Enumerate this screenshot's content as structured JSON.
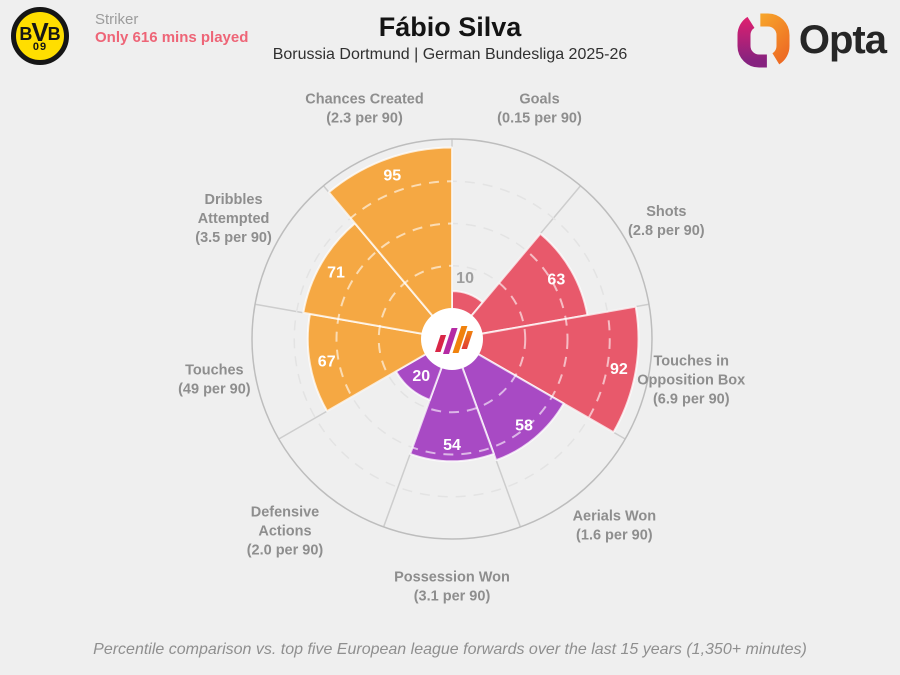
{
  "header": {
    "club_badge": {
      "b1": "B",
      "v": "V",
      "b2": "B",
      "number": "09"
    },
    "position": "Striker",
    "warning": "Only 616 mins played",
    "title": "Fábio Silva",
    "subtitle": "Borussia Dortmund | German Bundesliga 2025-26",
    "brand": "Opta"
  },
  "footer": {
    "note": "Percentile comparison vs. top five European league forwards over the last 15 years (1,350+ minutes)"
  },
  "colors": {
    "background": "#EFEFEF",
    "red": "#E8596B",
    "orange": "#F5A843",
    "purple": "#A84AC4",
    "warning_text": "#EE6577",
    "label_gray": "#8E8E8E",
    "outer_ring": "#BDBDBD",
    "spoke_gray": "#CDCDCD",
    "faint_grid": "#E3E3E3",
    "outside_value_gray": "#9E9E9E"
  },
  "chart_data": {
    "type": "pizza-radar",
    "title": "Fábio Silva",
    "unit": "percentile",
    "scale": [
      0,
      100
    ],
    "grid_rings_percent": [
      25,
      50,
      75
    ],
    "legend_position": "none",
    "categories": [
      {
        "name_lines": [
          "Goals"
        ],
        "per90": "(0.15 per 90)",
        "value": 10,
        "color": "#E8596B",
        "bisector_deg": 20
      },
      {
        "name_lines": [
          "Shots"
        ],
        "per90": "(2.8 per 90)",
        "value": 63,
        "color": "#E8596B",
        "bisector_deg": 60
      },
      {
        "name_lines": [
          "Touches in",
          "Opposition Box"
        ],
        "per90": "(6.9 per 90)",
        "value": 92,
        "color": "#E8596B",
        "bisector_deg": 100
      },
      {
        "name_lines": [
          "Aerials Won"
        ],
        "per90": "(1.6 per 90)",
        "value": 58,
        "color": "#A84AC4",
        "bisector_deg": 140
      },
      {
        "name_lines": [
          "Possession Won"
        ],
        "per90": "(3.1 per 90)",
        "value": 54,
        "color": "#A84AC4",
        "bisector_deg": 180
      },
      {
        "name_lines": [
          "Defensive",
          "Actions"
        ],
        "per90": "(2.0 per 90)",
        "value": 20,
        "color": "#A84AC4",
        "bisector_deg": 220
      },
      {
        "name_lines": [
          "Touches"
        ],
        "per90": "(49 per 90)",
        "value": 67,
        "color": "#F5A843",
        "bisector_deg": 260
      },
      {
        "name_lines": [
          "Dribbles",
          "Attempted"
        ],
        "per90": "(3.5 per 90)",
        "value": 71,
        "color": "#F5A843",
        "bisector_deg": 300
      },
      {
        "name_lines": [
          "Chances Created"
        ],
        "per90": "(2.3 per 90)",
        "value": 95,
        "color": "#F5A843",
        "bisector_deg": 340
      }
    ]
  }
}
